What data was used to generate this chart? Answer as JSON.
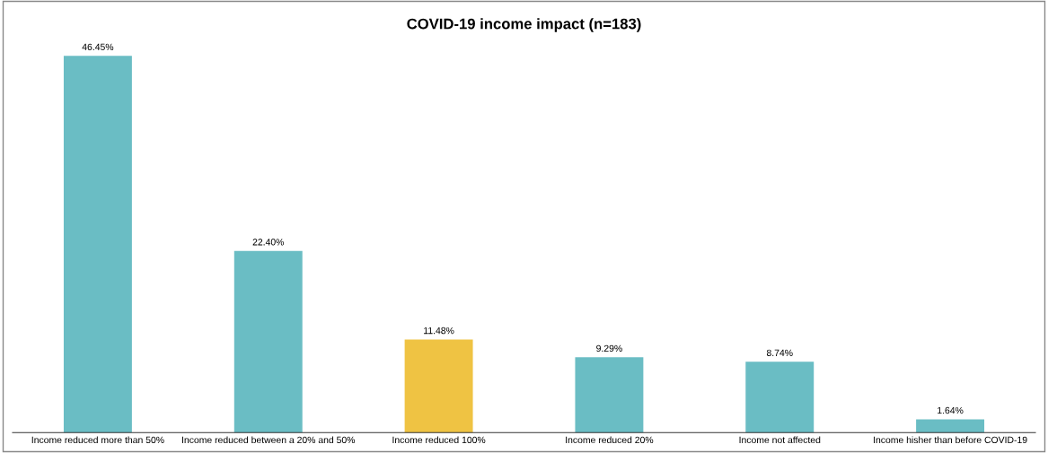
{
  "chart_data": {
    "type": "bar",
    "title": "COVID-19 income impact (n=183)",
    "categories": [
      "Income reduced more than 50%",
      "Income reduced between a 20% and 50%",
      "Income reduced 100%",
      "Income reduced 20%",
      "Income not affected",
      "Income hisher than before COVID-19"
    ],
    "values": [
      46.45,
      22.4,
      11.48,
      9.29,
      8.74,
      1.64
    ],
    "colors": [
      "#6abdc4",
      "#6abdc4",
      "#efc343",
      "#6abdc4",
      "#6abdc4",
      "#6abdc4"
    ],
    "value_labels": [
      "46.45%",
      "22.40%",
      "11.48%",
      "9.29%",
      "8.74%",
      "1.64%"
    ],
    "grid": false,
    "legend": false
  }
}
